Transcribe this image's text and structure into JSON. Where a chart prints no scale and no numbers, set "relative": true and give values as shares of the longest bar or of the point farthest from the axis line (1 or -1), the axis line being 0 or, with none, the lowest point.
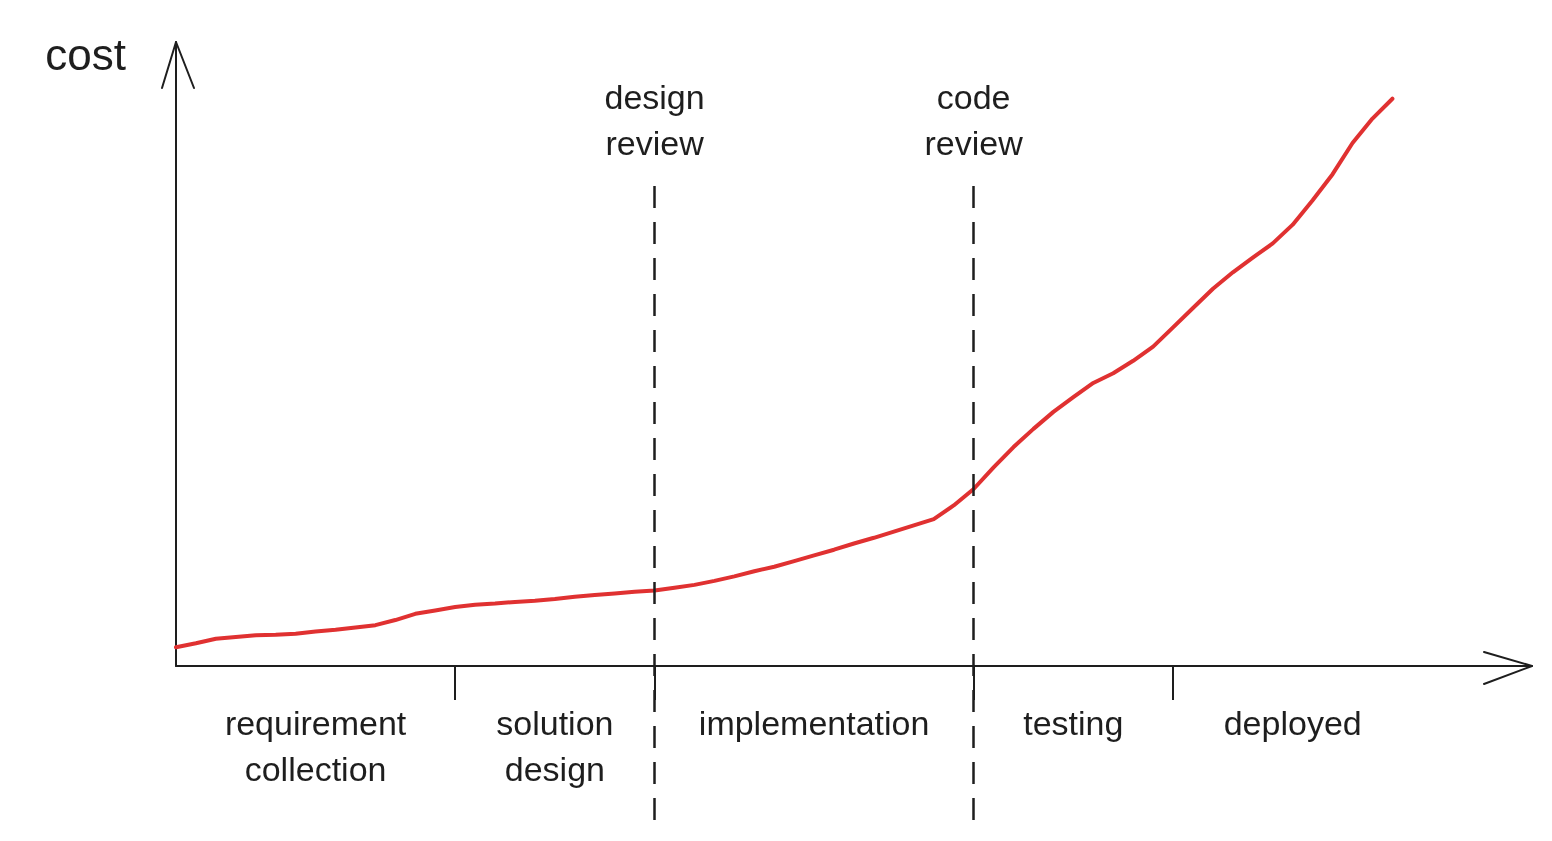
{
  "chart_data": {
    "type": "line",
    "ylabel": "cost",
    "relative": true,
    "categories": [
      null,
      null,
      null,
      null,
      null,
      null,
      null,
      "requirement collection",
      null,
      null,
      null,
      null,
      null,
      null,
      null,
      null,
      null,
      null,
      null,
      "solution design",
      null,
      null,
      null,
      null,
      null,
      null,
      null,
      null,
      null,
      null,
      null,
      null,
      "implementation",
      null,
      null,
      null,
      null,
      null,
      null,
      null,
      null,
      null,
      null,
      null,
      null,
      "testing",
      null,
      null,
      null,
      null,
      null,
      null,
      null,
      null,
      null,
      null,
      "deployed",
      null,
      null,
      null,
      null,
      null,
      null,
      null,
      null,
      null,
      null,
      null,
      null
    ],
    "series": [
      {
        "color": "#e03131",
        "values": [
          0.033,
          0.04,
          0.048,
          0.051,
          0.054,
          0.055,
          0.057,
          0.061,
          0.064,
          0.068,
          0.072,
          0.081,
          0.092,
          0.098,
          0.104,
          0.108,
          0.11,
          0.113,
          0.115,
          0.118,
          0.122,
          0.125,
          0.128,
          0.131,
          0.133,
          0.138,
          0.143,
          0.15,
          0.158,
          0.167,
          0.175,
          0.185,
          0.195,
          0.205,
          0.216,
          0.226,
          0.237,
          0.248,
          0.259,
          0.283,
          0.312,
          0.35,
          0.386,
          0.418,
          0.448,
          0.474,
          0.499,
          0.516,
          0.538,
          0.563,
          0.597,
          0.631,
          0.665,
          0.694,
          0.72,
          0.745,
          0.778,
          0.821,
          0.867,
          0.922,
          0.965,
          1,
          null,
          null,
          null,
          null,
          null,
          null,
          null
        ]
      }
    ],
    "annotations": [
      "design review",
      "code review"
    ]
  }
}
